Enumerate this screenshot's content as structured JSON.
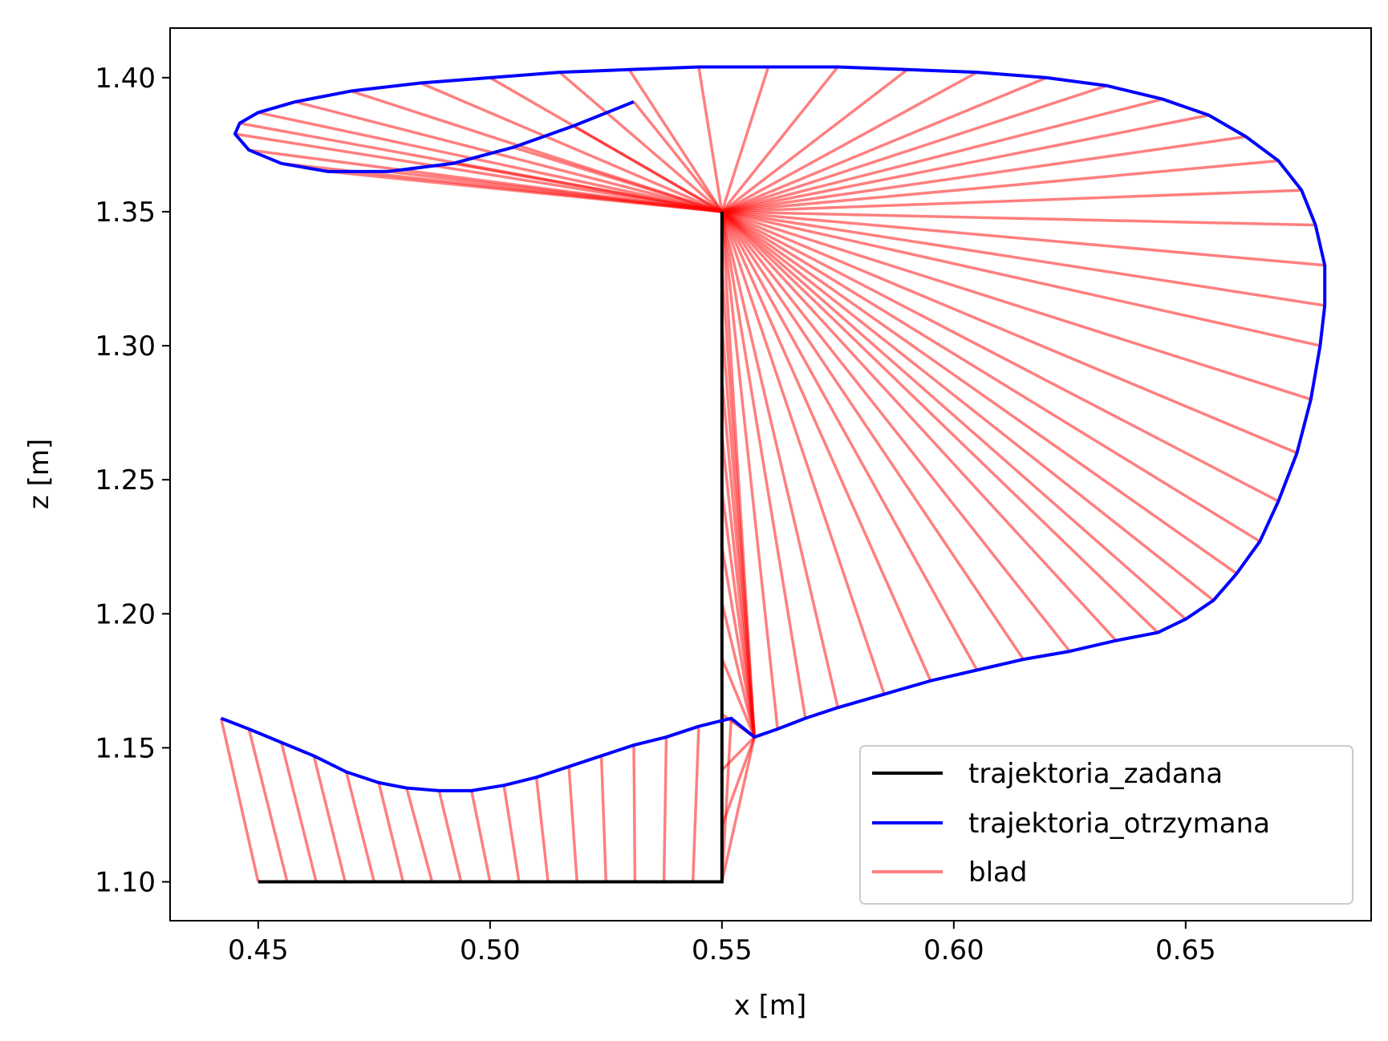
{
  "chart_data": {
    "type": "line",
    "xlabel": "x [m]",
    "ylabel": "z [m]",
    "xlim": [
      0.431,
      0.69
    ],
    "ylim": [
      1.0855,
      1.4185
    ],
    "xticks": [
      0.45,
      0.5,
      0.55,
      0.6,
      0.65
    ],
    "xtick_labels": [
      "0.45",
      "0.50",
      "0.55",
      "0.60",
      "0.65"
    ],
    "yticks": [
      1.1,
      1.15,
      1.2,
      1.25,
      1.3,
      1.35,
      1.4
    ],
    "ytick_labels": [
      "1.10",
      "1.15",
      "1.20",
      "1.25",
      "1.30",
      "1.35",
      "1.40"
    ],
    "grid": false,
    "legend_position": "lower-right",
    "series": [
      {
        "name": "trajektoria_zadana",
        "color": "#000000",
        "x": [
          0.45,
          0.55,
          0.55
        ],
        "y": [
          1.1,
          1.1,
          1.35
        ]
      },
      {
        "name": "trajektoria_otrzymana",
        "color": "#0000ff",
        "x": [
          0.442,
          0.448,
          0.455,
          0.462,
          0.469,
          0.476,
          0.482,
          0.489,
          0.496,
          0.503,
          0.51,
          0.517,
          0.524,
          0.531,
          0.538,
          0.545,
          0.552,
          0.557,
          0.562,
          0.568,
          0.575,
          0.585,
          0.595,
          0.605,
          0.615,
          0.625,
          0.635,
          0.644,
          0.65,
          0.656,
          0.661,
          0.666,
          0.67,
          0.674,
          0.677,
          0.679,
          0.68,
          0.68,
          0.678,
          0.675,
          0.67,
          0.663,
          0.655,
          0.645,
          0.633,
          0.62,
          0.605,
          0.59,
          0.575,
          0.56,
          0.545,
          0.53,
          0.515,
          0.5,
          0.485,
          0.47,
          0.458,
          0.45,
          0.446,
          0.445,
          0.448,
          0.455,
          0.465,
          0.478,
          0.492,
          0.505,
          0.518,
          0.531
        ],
        "y": [
          1.161,
          1.157,
          1.152,
          1.147,
          1.141,
          1.137,
          1.135,
          1.134,
          1.134,
          1.136,
          1.139,
          1.143,
          1.147,
          1.151,
          1.154,
          1.158,
          1.161,
          1.154,
          1.157,
          1.161,
          1.165,
          1.17,
          1.175,
          1.179,
          1.183,
          1.186,
          1.19,
          1.193,
          1.198,
          1.205,
          1.215,
          1.227,
          1.242,
          1.26,
          1.28,
          1.3,
          1.315,
          1.33,
          1.345,
          1.358,
          1.369,
          1.378,
          1.386,
          1.392,
          1.397,
          1.4,
          1.402,
          1.403,
          1.404,
          1.404,
          1.404,
          1.403,
          1.402,
          1.4,
          1.398,
          1.395,
          1.391,
          1.387,
          1.383,
          1.379,
          1.373,
          1.368,
          1.365,
          1.365,
          1.368,
          1.374,
          1.382,
          1.391
        ]
      },
      {
        "name": "blad",
        "color": "#ff0000",
        "note_type": "error segments"
      }
    ]
  }
}
